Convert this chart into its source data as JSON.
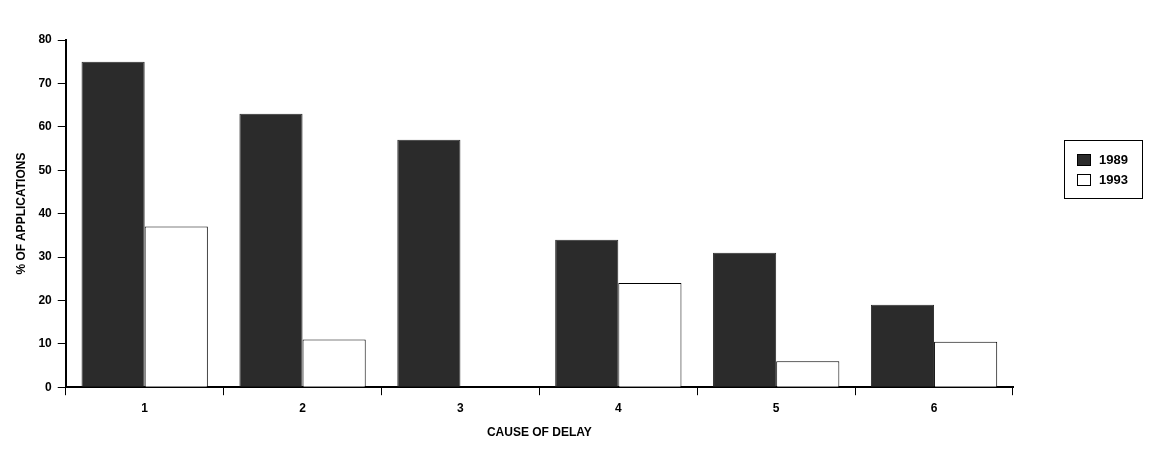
{
  "chart_data": {
    "type": "bar",
    "xlabel": "CAUSE OF DELAY",
    "ylabel": "% OF APPLICATIONS",
    "categories": [
      "1",
      "2",
      "3",
      "4",
      "5",
      "6"
    ],
    "series": [
      {
        "name": "1989",
        "color": "#2b2b2b",
        "values": [
          75,
          63,
          57,
          34,
          31,
          19
        ]
      },
      {
        "name": "1993",
        "color": "#ffffff",
        "values": [
          37,
          11,
          0,
          24,
          6,
          10.5
        ]
      }
    ],
    "ylim": [
      0,
      80
    ],
    "yticks": [
      0,
      10,
      20,
      30,
      40,
      50,
      60,
      70,
      80
    ],
    "grid": false,
    "legend": "right"
  }
}
